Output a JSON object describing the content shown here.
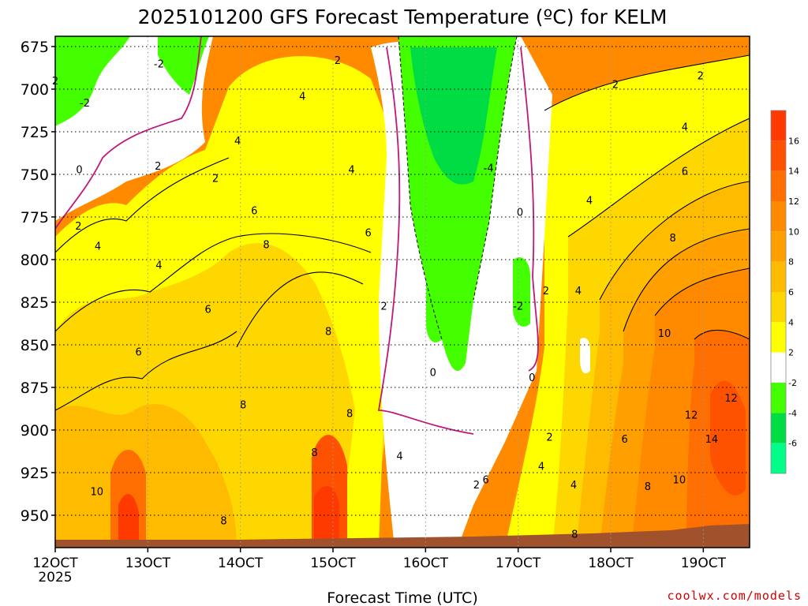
{
  "title": "2025101200 GFS Forecast Temperature (ºC) for KELM",
  "xlabel": "Forecast Time (UTC)",
  "credit": "coolwx.com/models",
  "chart_data": {
    "type": "heatmap",
    "title": "2025101200 GFS Forecast Temperature (ºC) for KELM",
    "xlabel": "Forecast Time (UTC)",
    "ylabel": "",
    "x_ticks": [
      {
        "label": "12OCT",
        "sub": "2025",
        "day": 12
      },
      {
        "label": "13OCT",
        "day": 13
      },
      {
        "label": "14OCT",
        "day": 14
      },
      {
        "label": "15OCT",
        "day": 15
      },
      {
        "label": "16OCT",
        "day": 16
      },
      {
        "label": "17OCT",
        "day": 17
      },
      {
        "label": "18OCT",
        "day": 18
      },
      {
        "label": "19OCT",
        "day": 19
      }
    ],
    "xlim_days": [
      12,
      19.5
    ],
    "y_ticks": [
      675,
      700,
      725,
      750,
      775,
      800,
      825,
      850,
      875,
      900,
      925,
      950
    ],
    "ylim_hpa": [
      669,
      969
    ],
    "y_reversed": true,
    "colorbar": [
      {
        "lo": 16,
        "hi": 18,
        "color": "#ff3a00"
      },
      {
        "lo": 14,
        "hi": 16,
        "color": "#ff5200"
      },
      {
        "lo": 12,
        "hi": 14,
        "color": "#ff6e00"
      },
      {
        "lo": 10,
        "hi": 12,
        "color": "#ff8a00"
      },
      {
        "lo": 8,
        "hi": 10,
        "color": "#ffa000"
      },
      {
        "lo": 6,
        "hi": 8,
        "color": "#ffbb00"
      },
      {
        "lo": 4,
        "hi": 6,
        "color": "#ffd700"
      },
      {
        "lo": 2,
        "hi": 4,
        "color": "#ffff00"
      },
      {
        "lo": -2,
        "hi": 2,
        "color": "#ffffff"
      },
      {
        "lo": -4,
        "hi": -2,
        "color": "#44ff00"
      },
      {
        "lo": -6,
        "hi": -4,
        "color": "#00dd44"
      },
      {
        "lo": -8,
        "hi": -6,
        "color": "#00ff88"
      }
    ],
    "colorbar_labels": [
      "16",
      "14",
      "12",
      "10",
      "8",
      "6",
      "4",
      "2",
      "-2",
      "-4",
      "-6"
    ],
    "contour_labels": [
      {
        "text": "-2",
        "day": 13.12,
        "p": 685
      },
      {
        "text": "2",
        "day": 12.0,
        "p": 695
      },
      {
        "text": "-2",
        "day": 12.32,
        "p": 708
      },
      {
        "text": "0",
        "day": 12.26,
        "p": 747
      },
      {
        "text": "2",
        "day": 12.25,
        "p": 780
      },
      {
        "text": "4",
        "day": 12.46,
        "p": 792
      },
      {
        "text": "2",
        "day": 13.11,
        "p": 745
      },
      {
        "text": "2",
        "day": 13.73,
        "p": 752
      },
      {
        "text": "4",
        "day": 13.12,
        "p": 803
      },
      {
        "text": "6",
        "day": 13.65,
        "p": 829
      },
      {
        "text": "6",
        "day": 12.9,
        "p": 854
      },
      {
        "text": "10",
        "day": 12.45,
        "p": 936
      },
      {
        "text": "8",
        "day": 13.82,
        "p": 953
      },
      {
        "text": "4",
        "day": 13.97,
        "p": 730
      },
      {
        "text": "6",
        "day": 14.15,
        "p": 771
      },
      {
        "text": "8",
        "day": 14.03,
        "p": 885
      },
      {
        "text": "8",
        "day": 14.28,
        "p": 791
      },
      {
        "text": "2",
        "day": 15.05,
        "p": 683
      },
      {
        "text": "4",
        "day": 14.67,
        "p": 704
      },
      {
        "text": "4",
        "day": 15.2,
        "p": 747
      },
      {
        "text": "6",
        "day": 15.38,
        "p": 784
      },
      {
        "text": "8",
        "day": 14.95,
        "p": 842
      },
      {
        "text": "8",
        "day": 15.18,
        "p": 890
      },
      {
        "text": "8",
        "day": 14.8,
        "p": 913
      },
      {
        "text": "2",
        "day": 15.55,
        "p": 827
      },
      {
        "text": "4",
        "day": 15.72,
        "p": 915
      },
      {
        "text": "0",
        "day": 16.08,
        "p": 866
      },
      {
        "text": "-4",
        "day": 16.68,
        "p": 746
      },
      {
        "text": "0",
        "day": 17.02,
        "p": 772
      },
      {
        "text": "2",
        "day": 17.3,
        "p": 818
      },
      {
        "text": "-2",
        "day": 17.0,
        "p": 827
      },
      {
        "text": "0",
        "day": 17.15,
        "p": 869
      },
      {
        "text": "2",
        "day": 17.34,
        "p": 904
      },
      {
        "text": "4",
        "day": 17.25,
        "p": 921
      },
      {
        "text": "6",
        "day": 16.65,
        "p": 929
      },
      {
        "text": "2",
        "day": 16.55,
        "p": 932
      },
      {
        "text": "4",
        "day": 17.6,
        "p": 932
      },
      {
        "text": "8",
        "day": 17.61,
        "p": 961
      },
      {
        "text": "4",
        "day": 17.65,
        "p": 818
      },
      {
        "text": "4",
        "day": 17.77,
        "p": 765
      },
      {
        "text": "2",
        "day": 18.05,
        "p": 697
      },
      {
        "text": "6",
        "day": 18.15,
        "p": 905
      },
      {
        "text": "8",
        "day": 18.4,
        "p": 933
      },
      {
        "text": "10",
        "day": 18.58,
        "p": 843
      },
      {
        "text": "8",
        "day": 18.67,
        "p": 787
      },
      {
        "text": "6",
        "day": 18.8,
        "p": 748
      },
      {
        "text": "4",
        "day": 18.8,
        "p": 722
      },
      {
        "text": "2",
        "day": 18.97,
        "p": 692
      },
      {
        "text": "10",
        "day": 18.74,
        "p": 929
      },
      {
        "text": "12",
        "day": 18.87,
        "p": 891
      },
      {
        "text": "14",
        "day": 19.09,
        "p": 905
      },
      {
        "text": "12",
        "day": 19.3,
        "p": 881
      }
    ]
  }
}
